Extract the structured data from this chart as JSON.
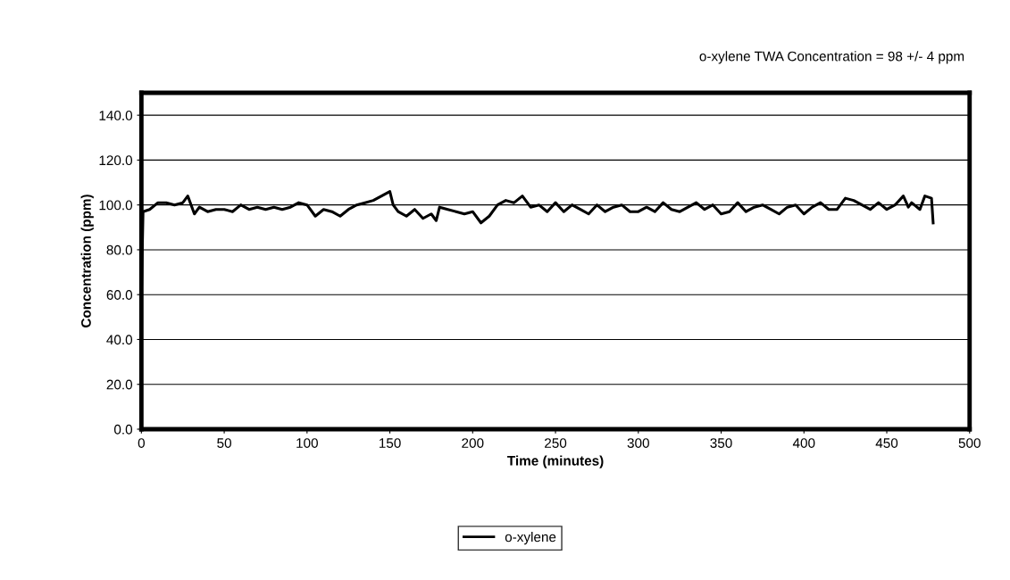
{
  "chart_data": {
    "type": "line",
    "xlabel": "Time (minutes)",
    "ylabel": "Concentration (ppm)",
    "annotations": [
      "o-xylene TWA Concentration = 98 +/- 4 ppm"
    ],
    "xlim": [
      0,
      500
    ],
    "xticks": [
      0,
      50,
      100,
      150,
      200,
      250,
      300,
      350,
      400,
      450,
      500
    ],
    "ylim": [
      0,
      150
    ],
    "yticks": [
      {
        "value": 0,
        "label": "0.0"
      },
      {
        "value": 20,
        "label": "20.0"
      },
      {
        "value": 40,
        "label": "40.0"
      },
      {
        "value": 60,
        "label": "60.0"
      },
      {
        "value": 80,
        "label": "80.0"
      },
      {
        "value": 100,
        "label": "100.0"
      },
      {
        "value": 120,
        "label": "120.0"
      },
      {
        "value": 140,
        "label": "140.0"
      }
    ],
    "grid": "y",
    "legend": "bottom",
    "line_style": "solid",
    "marker": "none",
    "x": [
      0,
      1,
      5,
      10,
      15,
      20,
      25,
      28,
      32,
      35,
      40,
      45,
      50,
      55,
      60,
      65,
      70,
      75,
      80,
      85,
      90,
      95,
      100,
      105,
      110,
      115,
      120,
      125,
      130,
      135,
      140,
      145,
      150,
      152,
      155,
      160,
      165,
      170,
      175,
      178,
      180,
      185,
      190,
      195,
      200,
      205,
      210,
      215,
      220,
      225,
      230,
      235,
      240,
      245,
      250,
      255,
      260,
      265,
      270,
      275,
      280,
      285,
      290,
      295,
      300,
      305,
      310,
      315,
      320,
      325,
      330,
      335,
      340,
      345,
      350,
      355,
      360,
      365,
      370,
      375,
      380,
      385,
      390,
      395,
      400,
      405,
      410,
      415,
      420,
      425,
      430,
      435,
      440,
      445,
      450,
      455,
      460,
      463,
      465,
      470,
      473,
      477,
      478
    ],
    "series": [
      {
        "name": "o-xylene",
        "color": "#000000",
        "values": [
          60,
          97,
          98,
          101,
          101,
          100,
          101,
          104,
          96,
          99,
          97,
          98,
          98,
          97,
          100,
          98,
          99,
          98,
          99,
          98,
          99,
          101,
          100,
          95,
          98,
          97,
          95,
          98,
          100,
          101,
          102,
          104,
          106,
          100,
          97,
          95,
          98,
          94,
          96,
          93,
          99,
          98,
          97,
          96,
          97,
          92,
          95,
          100,
          102,
          101,
          104,
          99,
          100,
          97,
          101,
          97,
          100,
          98,
          96,
          100,
          97,
          99,
          100,
          97,
          97,
          99,
          97,
          101,
          98,
          97,
          99,
          101,
          98,
          100,
          96,
          97,
          101,
          97,
          99,
          100,
          98,
          96,
          99,
          100,
          96,
          99,
          101,
          98,
          98,
          103,
          102,
          100,
          98,
          101,
          98,
          100,
          104,
          99,
          101,
          98,
          104,
          103,
          92
        ]
      }
    ]
  }
}
